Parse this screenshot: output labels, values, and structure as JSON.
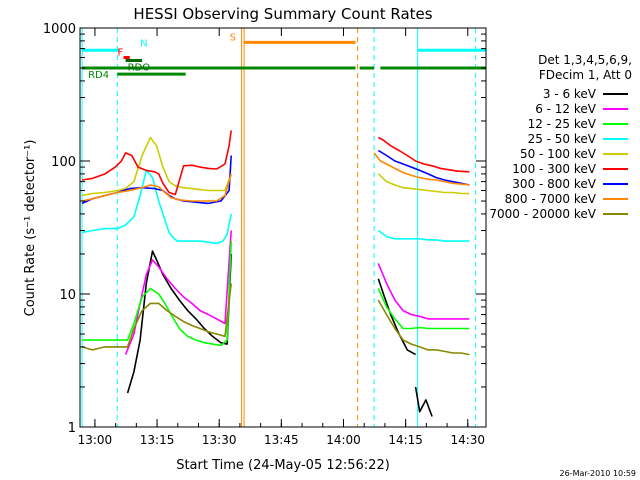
{
  "chart_data": {
    "type": "line",
    "title": "HESSI Observing Summary Count Rates",
    "xlabel": "Start Time (24-May-05 12:56:22)",
    "ylabel": "Count Rate (s⁻¹ detector⁻¹)",
    "x_unit": "minutes since 12:56:22 UT",
    "xlim": [
      0,
      98
    ],
    "ylim": [
      1,
      1000
    ],
    "yscale": "log",
    "x_ticks": [
      {
        "t": 3.6,
        "label": "13:00"
      },
      {
        "t": 18.6,
        "label": "13:15"
      },
      {
        "t": 33.6,
        "label": "13:30"
      },
      {
        "t": 48.6,
        "label": "13:45"
      },
      {
        "t": 63.6,
        "label": "14:00"
      },
      {
        "t": 78.6,
        "label": "14:15"
      },
      {
        "t": 93.6,
        "label": "14:30"
      }
    ],
    "y_ticks": [
      {
        "v": 1,
        "label": "1"
      },
      {
        "v": 10,
        "label": "10"
      },
      {
        "v": 100,
        "label": "100"
      },
      {
        "v": 1000,
        "label": "1000"
      }
    ],
    "legend": {
      "placement": "right",
      "header": [
        "Det 1,3,4,5,6,9,",
        "FDecim 1, Att 0"
      ]
    },
    "series": [
      {
        "name": "3 - 6 keV",
        "color": "#000000",
        "segments": [
          {
            "x": [
              11.5,
              13.0,
              14.5,
              16.0,
              17.5,
              18.5,
              20.0,
              22.0,
              24.0,
              26.0,
              28.0,
              30.0,
              32.0,
              34.0,
              35.5,
              36.5
            ],
            "y": [
              1.8,
              2.6,
              4.5,
              12,
              21,
              18,
              14,
              11,
              9,
              7.5,
              6.5,
              5.5,
              4.8,
              4.3,
              4.2,
              20
            ]
          },
          {
            "x": [
              72.0,
              73.5,
              75.0,
              77.0,
              79.0,
              81.0
            ],
            "y": [
              13,
              9.5,
              7,
              5,
              3.8,
              3.5
            ]
          },
          {
            "x": [
              81.0,
              82.0,
              83.5,
              85.0
            ],
            "y": [
              2.0,
              1.3,
              1.6,
              1.2
            ]
          }
        ]
      },
      {
        "name": "6 - 12 keV",
        "color": "#ff00ff",
        "segments": [
          {
            "x": [
              11.0,
              13.0,
              14.5,
              16.0,
              17.5,
              19.0,
              21.0,
              23.0,
              25.0,
              27.0,
              29.0,
              31.0,
              33.0,
              35.0,
              36.5
            ],
            "y": [
              3.5,
              5,
              8.5,
              14,
              18,
              16,
              13,
              11,
              9.5,
              8.5,
              7.5,
              7,
              6.5,
              6,
              30
            ]
          },
          {
            "x": [
              72.0,
              74.0,
              76.0,
              78.0,
              80.0,
              82.0,
              84.0,
              86.0,
              88.0,
              90.0,
              92.0,
              94.0
            ],
            "y": [
              17,
              12,
              9,
              7.5,
              7,
              6.8,
              6.5,
              6.5,
              6.5,
              6.5,
              6.5,
              6.5
            ]
          }
        ]
      },
      {
        "name": "12 - 25 keV",
        "color": "#00ff00",
        "segments": [
          {
            "x": [
              0.5,
              3.0,
              6.0,
              9.0,
              11.5,
              13.0,
              15.0,
              17.0,
              19.0,
              20.5,
              22.0,
              24.0,
              26.0,
              28.0,
              30.0,
              32.0,
              34.0,
              35.5,
              36.5
            ],
            "y": [
              4.5,
              4.5,
              4.5,
              4.5,
              4.5,
              6,
              9.5,
              11,
              10,
              8.5,
              7,
              5.5,
              4.8,
              4.5,
              4.3,
              4.2,
              4.1,
              4.5,
              25
            ]
          },
          {
            "x": [
              72.0,
              74.0,
              76.0,
              78.0,
              80.0,
              82.0,
              84.0,
              86.0,
              88.0,
              90.0,
              92.0,
              94.0
            ],
            "y": [
              11,
              8,
              6.5,
              5.5,
              5.5,
              5.6,
              5.5,
              5.5,
              5.5,
              5.5,
              5.5,
              5.5
            ]
          }
        ]
      },
      {
        "name": "25 - 50 keV",
        "color": "#00ffff",
        "segments": [
          {
            "x": [
              0.5,
              3.0,
              6.0,
              9.0,
              11.0,
              13.0,
              14.5,
              16.0,
              17.5,
              19.0,
              20.5,
              21.5,
              22.5,
              23.5,
              25.0,
              27.0,
              29.0,
              31.0,
              33.0,
              34.5,
              35.5,
              36.5
            ],
            "y": [
              29,
              30,
              31,
              31,
              33,
              38,
              55,
              85,
              75,
              50,
              36,
              29,
              26.5,
              25,
              25,
              25,
              25,
              24.5,
              24,
              25,
              28,
              40
            ]
          },
          {
            "x": [
              72.0,
              74.0,
              76.0,
              78.0,
              80.0,
              82.0,
              84.0,
              86.0,
              88.0,
              90.0,
              92.0,
              94.0
            ],
            "y": [
              30,
              27,
              26,
              26,
              26,
              26,
              25.5,
              25.5,
              25,
              25,
              25,
              25
            ]
          }
        ]
      },
      {
        "name": "50 - 100 keV",
        "color": "#cccc00",
        "segments": [
          {
            "x": [
              0.5,
              3.0,
              6.0,
              9.0,
              11.0,
              13.0,
              15.0,
              17.0,
              18.5,
              20.0,
              21.5,
              23.0,
              25.0,
              27.0,
              29.0,
              31.0,
              33.0,
              35.0,
              36.5
            ],
            "y": [
              55,
              57,
              58,
              60,
              62,
              70,
              110,
              150,
              130,
              90,
              70,
              65,
              63,
              62,
              61,
              60,
              60,
              60,
              80
            ]
          },
          {
            "x": [
              72.0,
              74.0,
              76.0,
              78.0,
              80.0,
              82.0,
              84.0,
              86.0,
              88.0,
              90.0,
              92.0,
              94.0
            ],
            "y": [
              80,
              70,
              66,
              63,
              62,
              61,
              60,
              59,
              58,
              58,
              57,
              57
            ]
          }
        ]
      },
      {
        "name": "100 - 300 keV",
        "color": "#ff0000",
        "segments": [
          {
            "x": [
              0.5,
              3.0,
              6.0,
              8.5,
              10.0,
              11.0,
              12.5,
              14.0,
              16.0,
              18.0,
              19.0,
              20.0,
              21.5,
              23.0,
              25.0,
              27.0,
              29.0,
              31.0,
              33.0,
              35.0,
              36.0,
              36.5
            ],
            "y": [
              72,
              74,
              80,
              90,
              100,
              115,
              110,
              90,
              85,
              83,
              80,
              68,
              58,
              56,
              92,
              93,
              90,
              88,
              87,
              95,
              130,
              170
            ]
          },
          {
            "x": [
              72.0,
              73.0,
              75.0,
              77.0,
              79.0,
              81.0,
              83.0,
              85.0,
              87.0,
              89.0,
              91.0,
              94.0
            ],
            "y": [
              150,
              145,
              130,
              120,
              110,
              100,
              95,
              92,
              88,
              86,
              84,
              83
            ]
          }
        ]
      },
      {
        "name": "300 - 800 keV",
        "color": "#0000ff",
        "segments": [
          {
            "x": [
              0.5,
              3.0,
              6.0,
              9.0,
              12.0,
              15.0,
              18.0,
              20.0,
              21.5,
              23.0,
              25.0,
              28.0,
              31.0,
              34.0,
              36.0,
              36.5
            ],
            "y": [
              48,
              52,
              55,
              58,
              62,
              63,
              62,
              60,
              55,
              52,
              50,
              49,
              48,
              50,
              60,
              110
            ]
          },
          {
            "x": [
              72.0,
              74.0,
              76.0,
              78.0,
              80.0,
              82.0,
              84.0,
              86.0,
              88.0,
              90.0,
              92.0,
              94.0
            ],
            "y": [
              120,
              110,
              100,
              95,
              90,
              85,
              80,
              75,
              72,
              70,
              68,
              66
            ]
          }
        ]
      },
      {
        "name": "800 - 7000 keV",
        "color": "#ff8800",
        "segments": [
          {
            "x": [
              0.5,
              3.0,
              6.0,
              9.0,
              12.0,
              15.0,
              17.0,
              19.0,
              20.5,
              22.0,
              24.0,
              27.0,
              30.0,
              33.0,
              35.0,
              36.5
            ],
            "y": [
              50,
              52,
              55,
              58,
              60,
              63,
              66,
              64,
              58,
              53,
              51,
              50,
              50,
              50,
              55,
              80
            ]
          },
          {
            "x": [
              71.0,
              72.5,
              74.0,
              76.0,
              78.0,
              80.0,
              82.0,
              84.0,
              86.0,
              88.0,
              90.0,
              92.0,
              94.0
            ],
            "y": [
              115,
              100,
              95,
              88,
              82,
              78,
              75,
              73,
              72,
              70,
              68,
              67,
              66
            ]
          }
        ]
      },
      {
        "name": "7000 - 20000 keV",
        "color": "#888800",
        "segments": [
          {
            "x": [
              0.5,
              3.0,
              6.0,
              9.0,
              11.5,
              13.0,
              15.0,
              17.0,
              19.0,
              21.0,
              23.0,
              25.0,
              27.0,
              29.0,
              31.0,
              33.0,
              35.0,
              36.5
            ],
            "y": [
              4.0,
              3.8,
              4.0,
              4.0,
              4.0,
              5.5,
              7.5,
              8.5,
              8.5,
              7.5,
              6.8,
              6.2,
              5.8,
              5.5,
              5.2,
              5.0,
              4.8,
              12
            ]
          },
          {
            "x": [
              72.0,
              74.0,
              76.0,
              78.0,
              80.0,
              82.0,
              84.0,
              86.0,
              88.0,
              90.0,
              92.0,
              94.0
            ],
            "y": [
              9,
              7,
              5.5,
              4.5,
              4.2,
              4.0,
              3.8,
              3.8,
              3.7,
              3.6,
              3.6,
              3.5
            ]
          }
        ]
      }
    ],
    "flag_bars": [
      {
        "label": "N",
        "color": "#00ffff",
        "level": 680,
        "spans": [
          [
            0.5,
            9.5
          ],
          [
            81.5,
            98
          ]
        ]
      },
      {
        "label": "S",
        "color": "#ff8800",
        "level": 780,
        "spans": [
          [
            39.5,
            66.5
          ]
        ]
      },
      {
        "label": "F",
        "color": "#ff0000",
        "level": 600,
        "spans": [
          [
            10.5,
            12.0
          ]
        ]
      },
      {
        "label": "RDO",
        "color": "#006600",
        "level": 570,
        "spans": [
          [
            11.0,
            15.0
          ]
        ]
      },
      {
        "label": "RD4",
        "color": "#008800",
        "level": 500,
        "spans": [
          [
            0.5,
            66.5
          ],
          [
            67.5,
            71.0
          ],
          [
            72.5,
            98
          ]
        ]
      }
    ],
    "flag_bar_gaps": [
      {
        "color": "#008800",
        "level": 450,
        "spans": [
          [
            9.0,
            25.5
          ]
        ]
      }
    ],
    "vertical_markers": [
      {
        "t": 0.5,
        "color": "#00ffff",
        "style": "solid"
      },
      {
        "t": 9.0,
        "color": "#00ffff",
        "style": "dashed"
      },
      {
        "t": 39.0,
        "color": "#ff8800",
        "style": "solid"
      },
      {
        "t": 39.6,
        "color": "#ff8800",
        "style": "solid"
      },
      {
        "t": 67.0,
        "color": "#ff8800",
        "style": "dashed"
      },
      {
        "t": 71.0,
        "color": "#00ffff",
        "style": "dashed"
      },
      {
        "t": 81.5,
        "color": "#00ffff",
        "style": "solid"
      },
      {
        "t": 95.5,
        "color": "#00ffff",
        "style": "dashed"
      }
    ],
    "footer_stamp": "26-Mar-2010 10:59"
  }
}
